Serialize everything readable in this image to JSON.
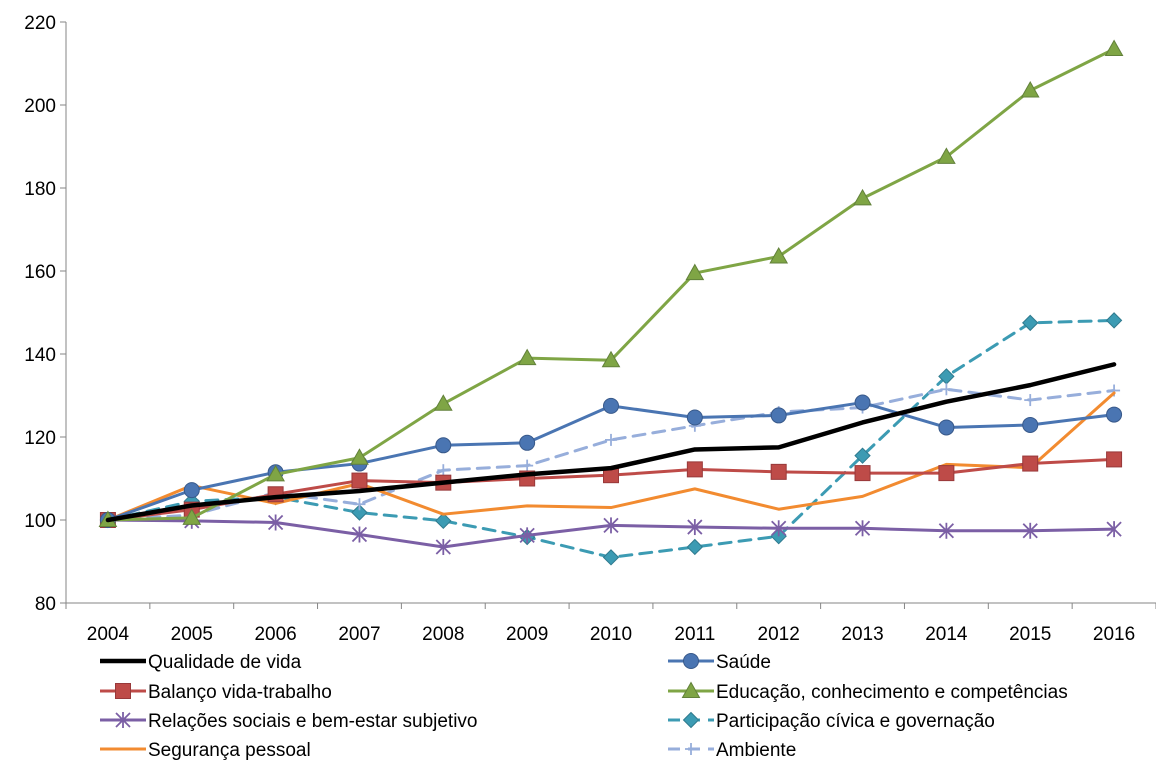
{
  "chart_data": {
    "type": "line",
    "title": "",
    "xlabel": "",
    "ylabel": "",
    "categories": [
      "2004",
      "2005",
      "2006",
      "2007",
      "2008",
      "2009",
      "2010",
      "2011",
      "2012",
      "2013",
      "2014",
      "2015",
      "2016"
    ],
    "ylim": [
      80,
      220
    ],
    "yticks": [
      80,
      100,
      120,
      140,
      160,
      180,
      200,
      220
    ],
    "grid": false,
    "legend_position": "bottom",
    "series": [
      {
        "name": "Qualidade de vida",
        "color": "#000000",
        "marker": "none",
        "dash": "solid",
        "values": [
          100,
          103.5,
          105.5,
          107,
          109,
          111,
          112.5,
          117,
          117.5,
          123.5,
          128.5,
          132.5,
          137.5
        ]
      },
      {
        "name": "Saúde",
        "color": "#4a75b2",
        "marker": "circle",
        "dash": "solid",
        "values": [
          100,
          107.2,
          111.5,
          113.6,
          118,
          118.6,
          127.5,
          124.7,
          125.2,
          128.3,
          122.3,
          122.9,
          125.4
        ]
      },
      {
        "name": "Balanço vida-trabalho",
        "color": "#be4b48",
        "marker": "square",
        "dash": "solid",
        "values": [
          100,
          102.5,
          106.2,
          109.5,
          109,
          110,
          110.8,
          112.2,
          111.6,
          111.3,
          111.3,
          113.6,
          114.6
        ]
      },
      {
        "name": "Educação, conhecimento e competências",
        "color": "#7fa545",
        "marker": "triangle",
        "dash": "solid",
        "values": [
          100,
          100.5,
          111,
          115,
          128,
          139,
          138.5,
          159.5,
          163.5,
          177.5,
          187.5,
          203.5,
          213.5
        ]
      },
      {
        "name": "Relações sociais e bem-estar subjetivo",
        "color": "#7b5fa5",
        "marker": "star",
        "dash": "solid",
        "values": [
          100,
          99.8,
          99.4,
          96.5,
          93.5,
          96.3,
          98.7,
          98.3,
          98,
          98,
          97.4,
          97.4,
          97.8
        ]
      },
      {
        "name": "Participação cívica e governação",
        "color": "#3c9bb3",
        "marker": "diamond",
        "dash": "dashed",
        "values": [
          100,
          104.5,
          105.5,
          101.8,
          99.8,
          95.9,
          91,
          93.5,
          96.1,
          115.5,
          134.6,
          147.5,
          148.1
        ]
      },
      {
        "name": "Segurança pessoal",
        "color": "#f28b30",
        "marker": "none",
        "dash": "solid",
        "values": [
          100,
          108.3,
          104,
          108.8,
          101.4,
          103.4,
          103,
          107.5,
          102.6,
          105.7,
          113.4,
          112.6,
          130.6
        ]
      },
      {
        "name": "Ambiente",
        "color": "#97aedb",
        "marker": "plus",
        "dash": "dashed",
        "values": [
          100,
          101.2,
          106.6,
          103.8,
          112,
          113.1,
          119.3,
          122.7,
          126,
          127.1,
          131.5,
          128.9,
          131.2
        ]
      }
    ]
  }
}
